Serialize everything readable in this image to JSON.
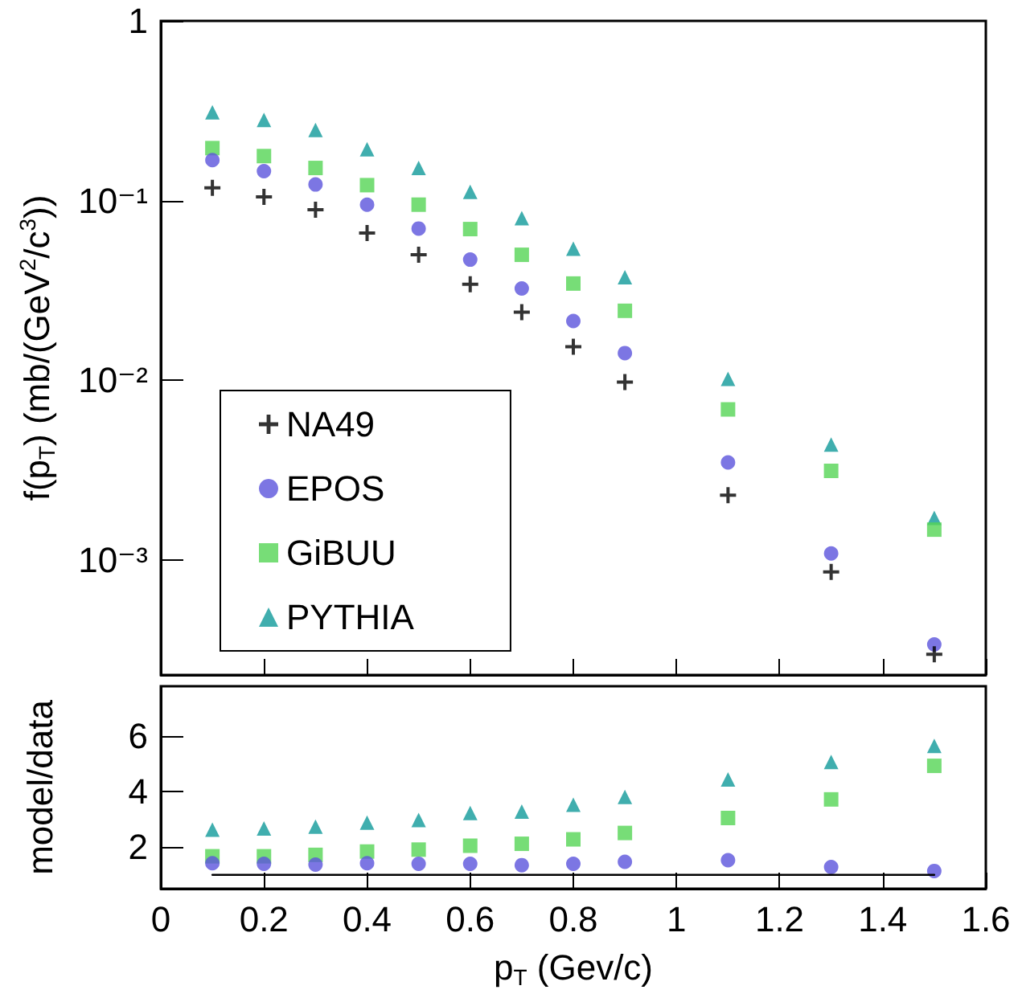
{
  "chart_data": [
    {
      "type": "scatter",
      "ylabel": "f(p$_{T}$) (mb/(GeV$^{2}$/c$^{3}$))",
      "log": "y",
      "legend": "bottom left",
      "tick_labels": "y",
      "x": [
        0.1,
        0.2,
        0.3,
        0.4,
        0.5,
        0.6,
        0.7,
        0.8,
        0.9,
        1.1,
        1.3,
        1.5
      ],
      "xlim": [
        0,
        1.6
      ],
      "xticks": [
        0,
        0.2,
        0.4,
        0.6,
        0.8,
        1,
        1.2,
        1.4,
        1.6
      ],
      "ylim": [
        0.00023,
        1
      ],
      "yticks": [
        {
          "value": 0.001,
          "label": "10⁻³"
        },
        {
          "value": 0.01,
          "label": "10⁻²"
        },
        {
          "value": 0.1,
          "label": "10⁻¹"
        },
        1
      ],
      "series": [
        {
          "name": "NA49",
          "color": "#000000",
          "marker": "cross",
          "values": [
            0.118,
            0.105,
            0.089,
            0.066,
            0.05,
            0.0343,
            0.024,
            0.0154,
            0.0098,
            0.0023,
            0.00086,
            0.0003
          ]
        },
        {
          "name": "EPOS",
          "color": "#5b54dc",
          "marker": "circle",
          "values": [
            0.168,
            0.146,
            0.123,
            0.095,
            0.07,
            0.047,
            0.0325,
            0.0214,
            0.0142,
            0.0035,
            0.00109,
            0.00034
          ]
        },
        {
          "name": "GiBUU",
          "color": "#55d455",
          "marker": "square",
          "values": [
            0.196,
            0.177,
            0.152,
            0.122,
            0.095,
            0.0695,
            0.05,
            0.0346,
            0.0244,
            0.0069,
            0.00314,
            0.00148
          ]
        },
        {
          "name": "PYTHIA",
          "color": "#109a9a",
          "marker": "triangle",
          "values": [
            0.31,
            0.281,
            0.247,
            0.193,
            0.152,
            0.112,
            0.08,
            0.054,
            0.0375,
            0.0102,
            0.0044,
            0.00172
          ]
        }
      ]
    },
    {
      "type": "scatter",
      "xlabel": "p$_{T}$ (Gev/c)",
      "ylabel": "model/data",
      "x": [
        0.1,
        0.2,
        0.3,
        0.4,
        0.5,
        0.6,
        0.7,
        0.8,
        0.9,
        1.1,
        1.3,
        1.5
      ],
      "xlim": [
        0,
        1.6
      ],
      "xticks": [
        0,
        0.2,
        0.4,
        0.6,
        0.8,
        1,
        1.2,
        1.4,
        1.6
      ],
      "ylim": [
        0.5,
        7.8
      ],
      "yticks": [
        2,
        4,
        6
      ],
      "series": [
        {
          "type": "line",
          "color": "#000000",
          "marker": "none",
          "values": [
            1,
            1,
            1,
            1,
            1,
            1,
            1,
            1,
            1,
            1,
            1,
            1
          ]
        },
        {
          "color": "#5b54dc",
          "marker": "circle",
          "values": [
            1.42,
            1.4,
            1.37,
            1.42,
            1.4,
            1.4,
            1.35,
            1.4,
            1.47,
            1.53,
            1.28,
            1.14
          ]
        },
        {
          "color": "#55d455",
          "marker": "square",
          "values": [
            1.67,
            1.67,
            1.72,
            1.84,
            1.91,
            2.05,
            2.12,
            2.28,
            2.51,
            3.05,
            3.72,
            4.93
          ]
        },
        {
          "color": "#109a9a",
          "marker": "triangle",
          "values": [
            2.63,
            2.67,
            2.74,
            2.88,
            2.98,
            3.23,
            3.28,
            3.53,
            3.81,
            4.44,
            5.07,
            5.65
          ]
        }
      ]
    }
  ]
}
